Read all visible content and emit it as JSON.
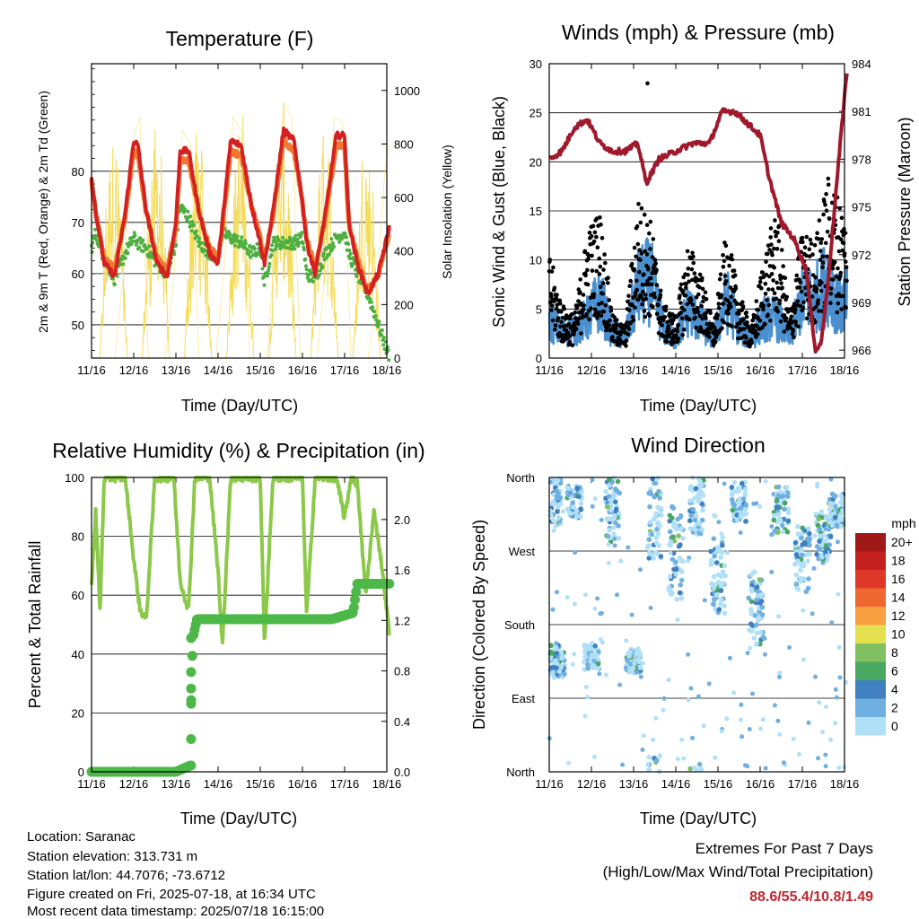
{
  "chart_data": [
    {
      "type": "line",
      "title": "Temperature (F)",
      "xlabel": "Time (Day/UTC)",
      "ylabel_left": "2m & 9m T (Red, Orange) & 2m Td (Green)",
      "ylabel_right": "Solar Insolation (Yellow)",
      "x_ticks": [
        "11/16",
        "12/16",
        "13/16",
        "14/16",
        "15/16",
        "16/16",
        "17/16",
        "18/16"
      ],
      "ylim_left": [
        43.5,
        101
      ],
      "yticks_left": [
        50,
        60,
        70,
        80
      ],
      "ylim_right": [
        0,
        1100
      ],
      "yticks_right": [
        0,
        200,
        400,
        600,
        800,
        1000
      ],
      "grid": true,
      "series": [
        {
          "name": "2m T",
          "axis": "left",
          "color": "#d42020",
          "x": [
            0,
            0.1,
            0.3,
            0.55,
            0.8,
            1,
            1.1,
            1.3,
            1.55,
            1.8,
            2,
            2.1,
            2.3,
            2.55,
            2.8,
            3,
            3.1,
            3.3,
            3.55,
            3.8,
            4,
            4.1,
            4.3,
            4.55,
            4.8,
            5,
            5.1,
            5.3,
            5.55,
            5.8,
            6,
            6.1,
            6.3,
            6.55,
            6.8,
            7,
            7.06
          ],
          "values": [
            79,
            72,
            62,
            59.5,
            72,
            86,
            85,
            72,
            62,
            59.5,
            70,
            84,
            84,
            72,
            64,
            62,
            70,
            86,
            85,
            73,
            66,
            62,
            72,
            88,
            86,
            74,
            66,
            60,
            72,
            87,
            87,
            70,
            62,
            56,
            60,
            67,
            69
          ]
        },
        {
          "name": "9m T",
          "axis": "left",
          "color": "#f07830",
          "x": [
            0,
            0.1,
            0.3,
            0.55,
            0.8,
            1,
            1.1,
            1.3,
            1.55,
            1.8,
            2,
            2.1,
            2.3,
            2.55,
            2.8,
            3,
            3.1,
            3.3,
            3.55,
            3.8,
            4,
            4.1,
            4.3,
            4.55,
            4.8,
            5,
            5.1,
            5.3,
            5.55,
            5.8,
            6,
            6.1,
            6.3,
            6.55,
            6.8,
            7,
            7.06
          ],
          "values": [
            78,
            72,
            63,
            61,
            71,
            84,
            83,
            72,
            63,
            61,
            69,
            82,
            82,
            72,
            65,
            63,
            69,
            84,
            83,
            73,
            67,
            63,
            71,
            86,
            84,
            74,
            67,
            61,
            71,
            85,
            85,
            70,
            63,
            56.5,
            60,
            66,
            68
          ]
        },
        {
          "name": "2m Td",
          "axis": "left",
          "color": "#4caf40",
          "x": [
            0,
            0.1,
            0.3,
            0.55,
            0.8,
            1,
            1.1,
            1.3,
            1.55,
            1.8,
            2,
            2.1,
            2.3,
            2.55,
            2.8,
            3,
            3.1,
            3.3,
            3.55,
            3.8,
            4,
            4.1,
            4.3,
            4.55,
            4.8,
            5,
            5.1,
            5.3,
            5.55,
            5.8,
            6,
            6.1,
            6.3,
            6.55,
            6.8,
            7,
            7.06
          ],
          "values": [
            65,
            68,
            63,
            59,
            64,
            67,
            66,
            65,
            62,
            60,
            66,
            73,
            71,
            66,
            64,
            63,
            68,
            67,
            66,
            64,
            65,
            58,
            66,
            66,
            66,
            67,
            60,
            59,
            64,
            67,
            68,
            64,
            60,
            56,
            50,
            45,
            44
          ]
        },
        {
          "name": "Solar Insolation",
          "axis": "right",
          "color": "#f4dc5a",
          "x": [
            0,
            0.15,
            0.35,
            0.55,
            0.75,
            0.95,
            1.15,
            1.35,
            1.55,
            1.75,
            1.95,
            2.15,
            2.35,
            2.55,
            2.75,
            2.95,
            3.15,
            3.35,
            3.55,
            3.75,
            3.95,
            4.15,
            4.35,
            4.55,
            4.75,
            4.95,
            5.15,
            5.35,
            5.55,
            5.75,
            5.95,
            6.15,
            6.35,
            6.55,
            6.75,
            6.95,
            7.06
          ],
          "values": [
            0,
            0,
            0,
            0,
            300,
            800,
            900,
            0,
            0,
            0,
            300,
            850,
            800,
            0,
            0,
            0,
            350,
            900,
            850,
            0,
            0,
            0,
            400,
            950,
            900,
            0,
            0,
            0,
            350,
            900,
            880,
            0,
            0,
            0,
            200,
            700,
            800
          ]
        }
      ]
    },
    {
      "type": "scatter",
      "title": "Winds (mph) & Pressure (mb)",
      "xlabel": "Time (Day/UTC)",
      "ylabel_left": "Sonic Wind & Gust (Blue, Black)",
      "ylabel_right": "Station Pressure (Maroon)",
      "x_ticks": [
        "11/16",
        "12/16",
        "13/16",
        "14/16",
        "15/16",
        "16/16",
        "17/16",
        "18/16"
      ],
      "ylim_left": [
        0,
        30
      ],
      "yticks_left": [
        0,
        5,
        10,
        15,
        20,
        25,
        30
      ],
      "ylim_right": [
        965.5,
        984
      ],
      "yticks_right": [
        966,
        969,
        972,
        975,
        978,
        981,
        984
      ],
      "grid": true,
      "series": [
        {
          "name": "Sonic Wind",
          "axis": "left",
          "color": "#4a90d0",
          "x": [
            0,
            0.3,
            0.6,
            0.9,
            1.2,
            1.5,
            1.8,
            2.1,
            2.4,
            2.7,
            3.0,
            3.3,
            3.6,
            3.9,
            4.2,
            4.5,
            4.8,
            5.1,
            5.4,
            5.7,
            6.0,
            6.3,
            6.6,
            6.9,
            7.06
          ],
          "values": [
            4,
            2.5,
            3,
            4,
            6,
            2.5,
            2,
            7,
            8,
            3,
            2,
            5,
            3.5,
            2,
            6,
            3,
            2,
            4,
            4,
            2,
            6,
            6,
            8,
            5,
            6
          ]
        },
        {
          "name": "Gust",
          "axis": "left",
          "color": "#000000",
          "x": [
            0,
            0.3,
            0.6,
            0.9,
            1.2,
            1.5,
            1.8,
            2.1,
            2.4,
            2.7,
            3.0,
            3.3,
            3.6,
            3.9,
            4.2,
            4.5,
            4.8,
            5.1,
            5.4,
            5.7,
            6.0,
            6.3,
            6.6,
            6.9,
            7.06
          ],
          "values": [
            10,
            5,
            4,
            12,
            14,
            4,
            3,
            15,
            13,
            5,
            4,
            11,
            8,
            3,
            12,
            6,
            3,
            10,
            14,
            4,
            12,
            11,
            17,
            15,
            13
          ]
        },
        {
          "name": "Station Pressure",
          "axis": "right",
          "color": "#a0182c",
          "x": [
            0,
            0.3,
            0.6,
            0.9,
            1.2,
            1.5,
            1.8,
            2.1,
            2.3,
            2.6,
            3.0,
            3.4,
            3.8,
            4.1,
            4.4,
            4.8,
            5.0,
            5.2,
            5.5,
            5.8,
            6.1,
            6.3,
            6.45,
            6.6,
            6.8,
            7.0,
            7.06
          ],
          "values": [
            978,
            978.5,
            980,
            980.5,
            979,
            978.5,
            978.5,
            979,
            976.5,
            978,
            978.5,
            979,
            979,
            981,
            981,
            980,
            979.5,
            977,
            974,
            973,
            971,
            966,
            966.5,
            970,
            976,
            982,
            983.5
          ]
        }
      ]
    },
    {
      "type": "line",
      "title": "Relative Humidity (%) & Precipitation (in)",
      "xlabel": "Time (Day/UTC)",
      "ylabel_left": "Percent & Total Rainfall",
      "ylabel_right": "",
      "x_ticks": [
        "11/16",
        "12/16",
        "13/16",
        "14/16",
        "15/16",
        "16/16",
        "17/16",
        "18/16"
      ],
      "ylim_left": [
        0,
        100
      ],
      "yticks_left": [
        0,
        20,
        40,
        60,
        80,
        100
      ],
      "ylim_right": [
        0,
        2.3333
      ],
      "yticks_right": [
        "0.0",
        "0.4",
        "0.8",
        "1.2",
        "1.6",
        "2.0"
      ],
      "grid": true,
      "series": [
        {
          "name": "Relative Humidity",
          "axis": "left",
          "color": "#8cc84a",
          "x": [
            0,
            0.1,
            0.2,
            0.3,
            0.35,
            0.45,
            0.6,
            0.8,
            1.0,
            1.15,
            1.3,
            1.5,
            1.7,
            1.95,
            2.1,
            2.3,
            2.45,
            2.6,
            2.8,
            3.0,
            3.1,
            3.3,
            3.55,
            3.8,
            4.0,
            4.1,
            4.3,
            4.55,
            4.8,
            5.0,
            5.1,
            5.3,
            5.55,
            5.8,
            6.0,
            6.15,
            6.3,
            6.5,
            6.7,
            6.9,
            7.06
          ],
          "values": [
            63,
            89,
            54,
            100,
            100,
            100,
            100,
            100,
            72,
            55,
            52,
            100,
            100,
            100,
            65,
            55,
            100,
            100,
            100,
            68,
            43,
            100,
            100,
            100,
            100,
            43,
            100,
            100,
            100,
            100,
            53,
            100,
            100,
            100,
            86,
            100,
            98,
            60,
            89,
            68,
            47
          ]
        },
        {
          "name": "Total Rainfall",
          "axis": "right",
          "color": "#4db848",
          "x": [
            0,
            0.5,
            1.0,
            1.5,
            2.0,
            2.34,
            2.35,
            2.36,
            2.37,
            2.38,
            2.4,
            2.5,
            3.0,
            4.0,
            5.0,
            5.7,
            6.0,
            6.2,
            6.3,
            6.5,
            7.0,
            7.06
          ],
          "values": [
            0,
            0,
            0,
            0,
            0,
            0.05,
            0.26,
            0.54,
            0.66,
            0.79,
            1.06,
            1.21,
            1.21,
            1.21,
            1.21,
            1.21,
            1.24,
            1.26,
            1.49,
            1.49,
            1.49,
            1.49
          ]
        }
      ]
    },
    {
      "type": "scatter",
      "title": "Wind Direction",
      "xlabel": "Time (Day/UTC)",
      "ylabel": "Direction (Colored By Speed)",
      "x_ticks": [
        "11/16",
        "12/16",
        "13/16",
        "14/16",
        "15/16",
        "16/16",
        "17/16",
        "18/16"
      ],
      "yticks": [
        "North",
        "East",
        "South",
        "West",
        "North"
      ],
      "ylim": [
        0,
        360
      ],
      "grid": true,
      "colorbar_title": "mph",
      "colorbar_labels": [
        "20+",
        "18",
        "16",
        "14",
        "12",
        "10",
        "8",
        "6",
        "4",
        "2",
        "0"
      ],
      "colorbar_colors": [
        "#a01818",
        "#c42020",
        "#e03828",
        "#f06830",
        "#f8a040",
        "#e4e050",
        "#80c060",
        "#48a860",
        "#4080c0",
        "#70b0e0",
        "#b0e0f8"
      ],
      "clusters": [
        {
          "x": 0.1,
          "dir": 330,
          "spread": 30
        },
        {
          "x": 0.2,
          "dir": 135,
          "spread": 20
        },
        {
          "x": 0.6,
          "dir": 330,
          "spread": 20
        },
        {
          "x": 1.0,
          "dir": 140,
          "spread": 15
        },
        {
          "x": 1.5,
          "dir": 320,
          "spread": 40
        },
        {
          "x": 2.0,
          "dir": 135,
          "spread": 15
        },
        {
          "x": 2.5,
          "dir": 320,
          "spread": 60
        },
        {
          "x": 3.0,
          "dir": 270,
          "spread": 60
        },
        {
          "x": 3.5,
          "dir": 330,
          "spread": 40
        },
        {
          "x": 4.0,
          "dir": 240,
          "spread": 50
        },
        {
          "x": 4.5,
          "dir": 330,
          "spread": 25
        },
        {
          "x": 4.9,
          "dir": 200,
          "spread": 50
        },
        {
          "x": 5.5,
          "dir": 320,
          "spread": 30
        },
        {
          "x": 6.0,
          "dir": 260,
          "spread": 40
        },
        {
          "x": 6.5,
          "dir": 285,
          "spread": 30
        },
        {
          "x": 6.8,
          "dir": 320,
          "spread": 20
        }
      ]
    }
  ],
  "footer": {
    "location": "Location: Saranac",
    "elevation": "Station elevation: 313.731 m",
    "latlon": "Station lat/lon: 44.7076; -73.6712",
    "created": "Figure created on Fri, 2025-07-18, at 16:34 UTC",
    "recent": "Most recent data timestamp: 2025/07/18 16:15:00"
  },
  "extremes": {
    "heading": "Extremes For Past 7 Days",
    "subheading": "(High/Low/Max Wind/Total Precipitation)",
    "values": "88.6/55.4/10.8/1.49"
  }
}
